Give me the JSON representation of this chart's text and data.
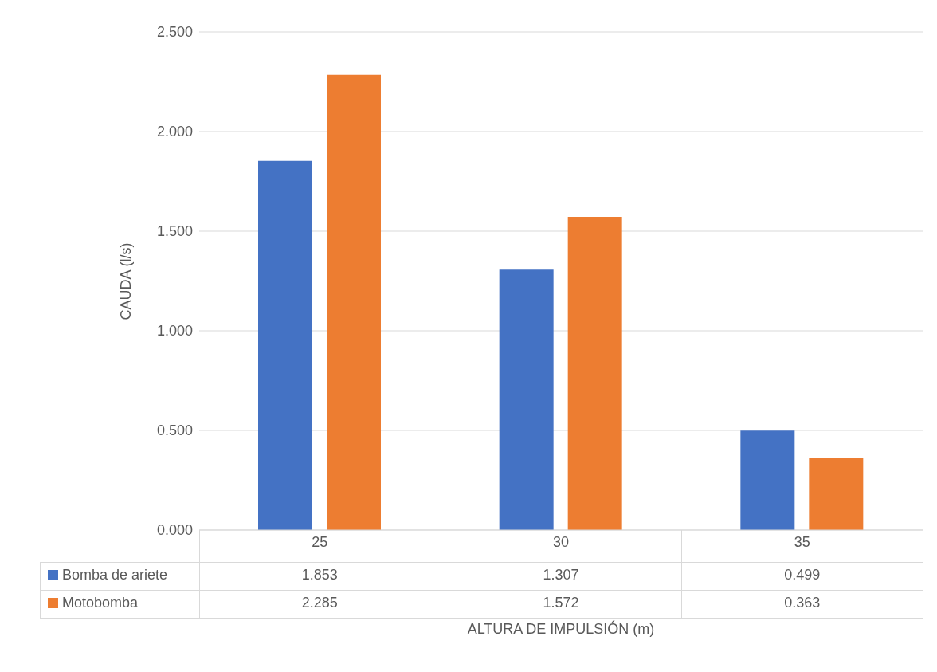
{
  "chart_data": {
    "type": "bar",
    "xlabel": "ALTURA DE IMPULSIÓN (m)",
    "ylabel": "CAUDA (l/s)",
    "categories": [
      "25",
      "30",
      "35"
    ],
    "series": [
      {
        "name": "Bomba de ariete",
        "color": "#4472c4",
        "values": [
          1.853,
          1.307,
          0.499
        ],
        "value_labels": [
          "1.853",
          "1.307",
          "0.499"
        ]
      },
      {
        "name": "Motobomba",
        "color": "#ed7d31",
        "values": [
          2.285,
          1.572,
          0.363
        ],
        "value_labels": [
          "2.285",
          "1.572",
          "0.363"
        ]
      }
    ],
    "ylim": [
      0,
      2.5
    ],
    "yticks": [
      {
        "value": 0,
        "label": "0.000"
      },
      {
        "value": 0.5,
        "label": "0.500"
      },
      {
        "value": 1,
        "label": "1.000"
      },
      {
        "value": 1.5,
        "label": "1.500"
      },
      {
        "value": 2,
        "label": "2.000"
      },
      {
        "value": 2.5,
        "label": "2.500"
      }
    ],
    "grid": "y",
    "legend": "bottom"
  }
}
